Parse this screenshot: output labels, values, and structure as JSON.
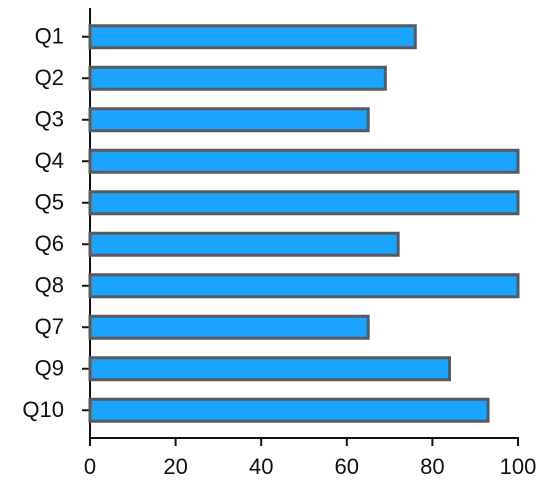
{
  "chart_data": {
    "type": "bar",
    "orientation": "horizontal",
    "categories": [
      "Q1",
      "Q2",
      "Q3",
      "Q4",
      "Q5",
      "Q6",
      "Q8",
      "Q7",
      "Q9",
      "Q10"
    ],
    "values": [
      76,
      69,
      65,
      100,
      100,
      72,
      100,
      65,
      84,
      93
    ],
    "color": "#1aa3ff",
    "edge_color": "#5a5a5a",
    "xlim": [
      0,
      100
    ],
    "xticks": [
      0,
      20,
      40,
      60,
      80,
      100
    ],
    "grid": false
  }
}
